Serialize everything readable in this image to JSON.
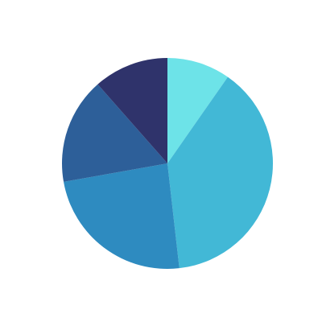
{
  "chart_data": {
    "type": "pie",
    "values": [
      9.7,
      38.5,
      24,
      16.3,
      11.5
    ],
    "colors": [
      "#6de3e8",
      "#42b8d6",
      "#2e8bc0",
      "#2d5f99",
      "#2f336b"
    ]
  }
}
